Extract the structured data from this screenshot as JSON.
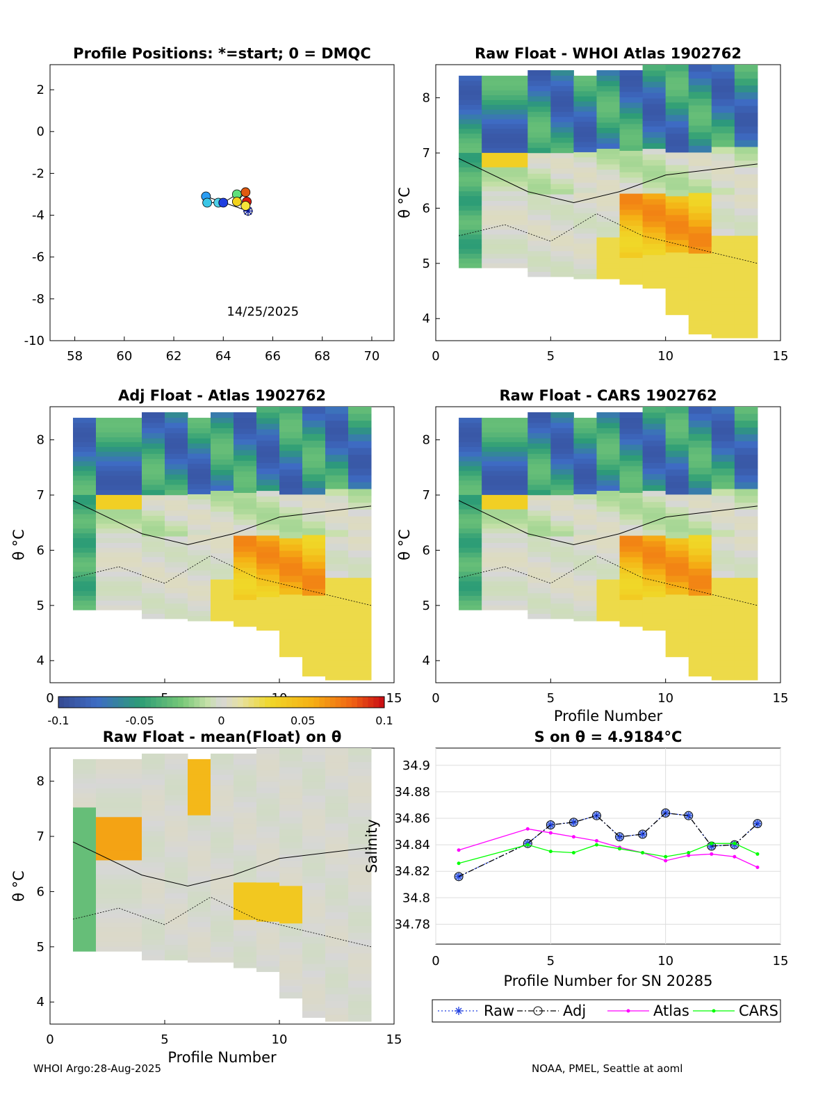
{
  "footer": {
    "left": "WHOI Argo:28-Aug-2025",
    "right": "NOAA, PMEL, Seattle at aoml"
  },
  "map_panel": {
    "title": "Profile Positions: *=start; 0 = DMQC",
    "date_label": "14/25/2025",
    "xticks": [
      "58",
      "60",
      "62",
      "64",
      "66",
      "68",
      "70"
    ],
    "yticks": [
      "2",
      "0",
      "-2",
      "-4",
      "-6",
      "-8",
      "-10"
    ],
    "xlim": [
      57,
      70.9
    ],
    "ylim": [
      -10,
      3.2
    ],
    "points": [
      {
        "lon": 65.0,
        "lat": -3.8,
        "color": "#0a1a9a",
        "marker": "star"
      },
      {
        "lon": 63.3,
        "lat": -3.1,
        "color": "#2a9df4"
      },
      {
        "lon": 63.35,
        "lat": -3.4,
        "color": "#3bc6e6"
      },
      {
        "lon": 63.8,
        "lat": -3.4,
        "color": "#4fd0e8"
      },
      {
        "lon": 64.0,
        "lat": -3.4,
        "color": "#1f3fe0"
      },
      {
        "lon": 64.55,
        "lat": -3.0,
        "color": "#5fe07a"
      },
      {
        "lon": 64.55,
        "lat": -3.35,
        "color": "#f2d21a"
      },
      {
        "lon": 64.9,
        "lat": -2.9,
        "color": "#e05a10"
      },
      {
        "lon": 64.95,
        "lat": -3.35,
        "color": "#d81d0d"
      },
      {
        "lon": 64.9,
        "lat": -3.55,
        "color": "#f5e63a"
      }
    ]
  },
  "heat_panels": [
    {
      "title": "Raw Float - WHOI Atlas  1902762",
      "ylabel": "θ °C",
      "xlabel": ""
    },
    {
      "title": "Adj Float - Atlas  1902762",
      "ylabel": "θ °C",
      "xlabel": ""
    },
    {
      "title": "Raw Float - CARS  1902762",
      "ylabel": "θ °C",
      "xlabel": "Profile Number"
    },
    {
      "title": "Raw Float - mean(Float) on θ",
      "ylabel": "θ °C",
      "xlabel": "Profile Number"
    }
  ],
  "heat_axes": {
    "xticks": [
      "0",
      "5",
      "10",
      "15"
    ],
    "yticks": [
      "8",
      "7",
      "6",
      "5",
      "4"
    ]
  },
  "colorbar": {
    "ticks": [
      "-0.1",
      "-0.05",
      "0",
      "0.05",
      "0.1"
    ],
    "range": [
      -0.1,
      0.1
    ]
  },
  "chart_data": {
    "type": "line",
    "title": "S on θ = 4.9184°C",
    "xlabel": "Profile Number for SN 20285",
    "ylabel": "Salinity",
    "xlim": [
      0,
      15
    ],
    "ylim": [
      34.765,
      34.913
    ],
    "xticks": [
      "0",
      "5",
      "10",
      "15"
    ],
    "yticks": [
      "34.9",
      "34.88",
      "34.86",
      "34.84",
      "34.82",
      "34.8",
      "34.78"
    ],
    "series": [
      {
        "name": "Raw",
        "color": "#1f3fe0",
        "x": [
          1,
          4,
          5,
          6,
          7,
          8,
          9,
          10,
          11,
          12,
          13,
          14
        ],
        "values": [
          34.816,
          34.841,
          34.855,
          34.857,
          34.862,
          34.846,
          34.848,
          34.864,
          34.862,
          34.839,
          34.84,
          34.856
        ]
      },
      {
        "name": "Adj",
        "color": "#000000",
        "x": [
          1,
          4,
          5,
          6,
          7,
          8,
          9,
          10,
          11,
          12,
          13,
          14
        ],
        "values": [
          34.816,
          34.841,
          34.855,
          34.857,
          34.862,
          34.846,
          34.848,
          34.864,
          34.862,
          34.839,
          34.84,
          34.856
        ]
      },
      {
        "name": "Atlas",
        "color": "#ff00ff",
        "x": [
          1,
          4,
          5,
          6,
          7,
          8,
          9,
          10,
          11,
          12,
          13,
          14
        ],
        "values": [
          34.836,
          34.852,
          34.849,
          34.846,
          34.843,
          34.838,
          34.834,
          34.828,
          34.832,
          34.833,
          34.831,
          34.823
        ]
      },
      {
        "name": "CARS",
        "color": "#00ff00",
        "x": [
          1,
          4,
          5,
          6,
          7,
          8,
          9,
          10,
          11,
          12,
          13,
          14
        ],
        "values": [
          34.826,
          34.84,
          34.835,
          34.834,
          34.84,
          34.837,
          34.834,
          34.831,
          34.834,
          34.841,
          34.841,
          34.833
        ]
      }
    ],
    "legend": [
      "Raw",
      "Adj",
      "Atlas",
      "CARS"
    ]
  }
}
